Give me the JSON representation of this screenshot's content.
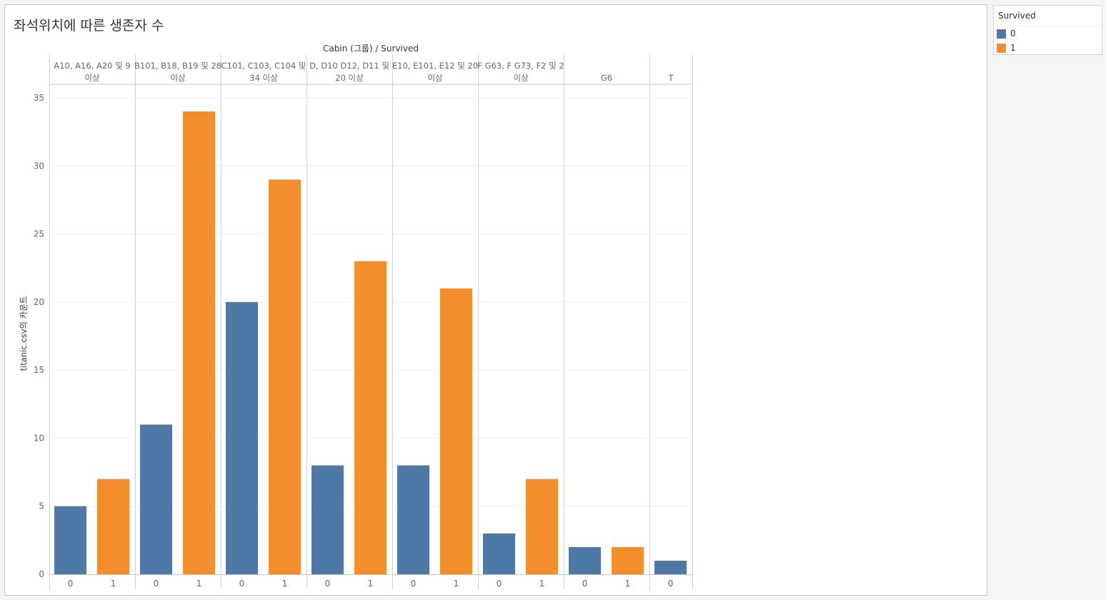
{
  "title": "좌석위치에 따른 생존자 수",
  "legend": {
    "title": "Survived",
    "items": [
      {
        "label": "0",
        "color": "#4e79a7"
      },
      {
        "label": "1",
        "color": "#f28e2b"
      }
    ]
  },
  "chart_data": {
    "type": "bar",
    "header_title": "Cabin (그룹) / Survived",
    "ylabel": "titanic.csv의 카운트",
    "ylim": [
      0,
      35
    ],
    "yticks": [
      0,
      5,
      10,
      15,
      20,
      25,
      30,
      35
    ],
    "groups": [
      {
        "label_lines": [
          "A10, A16, A20 및 9",
          "이상"
        ],
        "bars": [
          {
            "survived": "0",
            "value": 5
          },
          {
            "survived": "1",
            "value": 7
          }
        ]
      },
      {
        "label_lines": [
          "B101, B18, B19 및 28",
          "이상"
        ],
        "bars": [
          {
            "survived": "0",
            "value": 11
          },
          {
            "survived": "1",
            "value": 34
          }
        ]
      },
      {
        "label_lines": [
          "C101, C103, C104 및",
          "34 이상"
        ],
        "bars": [
          {
            "survived": "0",
            "value": 20
          },
          {
            "survived": "1",
            "value": 29
          }
        ]
      },
      {
        "label_lines": [
          "D, D10 D12, D11 및",
          "20 이상"
        ],
        "bars": [
          {
            "survived": "0",
            "value": 8
          },
          {
            "survived": "1",
            "value": 23
          }
        ]
      },
      {
        "label_lines": [
          "E10, E101, E12 및 20",
          "이상"
        ],
        "bars": [
          {
            "survived": "0",
            "value": 8
          },
          {
            "survived": "1",
            "value": 21
          }
        ]
      },
      {
        "label_lines": [
          "F G63, F G73, F2 및 2",
          "이상"
        ],
        "bars": [
          {
            "survived": "0",
            "value": 3
          },
          {
            "survived": "1",
            "value": 7
          }
        ]
      },
      {
        "label_lines": [
          "G6"
        ],
        "bars": [
          {
            "survived": "0",
            "value": 2
          },
          {
            "survived": "1",
            "value": 2
          }
        ]
      },
      {
        "label_lines": [
          "T"
        ],
        "bars": [
          {
            "survived": "0",
            "value": 1
          }
        ]
      }
    ]
  }
}
